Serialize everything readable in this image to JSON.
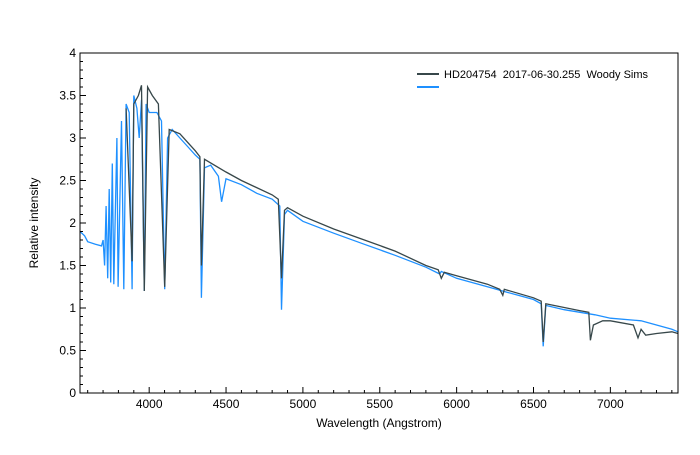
{
  "chart_data": {
    "type": "line",
    "title": "",
    "xlabel": "Wavelength (Angstrom)",
    "ylabel": "Relative intensity",
    "xlim": [
      3550,
      7440
    ],
    "ylim": [
      0,
      4
    ],
    "xticks": [
      4000,
      4500,
      5000,
      5500,
      6000,
      6500,
      7000
    ],
    "yticks": [
      0,
      0.5,
      1,
      1.5,
      2,
      2.5,
      3,
      3.5,
      4
    ],
    "ytick_labels": [
      "0",
      "0.5",
      "1",
      "1.5",
      "2",
      "2.5",
      "3",
      "3.5",
      "4"
    ],
    "legend_position": "top-right",
    "series": [
      {
        "name": "HD204754  2017-06-30.255  Woody Sims",
        "color": "#37474a",
        "x": [
          3850,
          3889,
          3900,
          3930,
          3950,
          3968,
          3990,
          4020,
          4060,
          4101,
          4130,
          4200,
          4300,
          4330,
          4340,
          4360,
          4500,
          4600,
          4800,
          4840,
          4861,
          4880,
          4900,
          5000,
          5200,
          5400,
          5600,
          5800,
          5880,
          5900,
          5920,
          6000,
          6200,
          6280,
          6300,
          6310,
          6500,
          6550,
          6563,
          6580,
          6800,
          6860,
          6870,
          6890,
          6950,
          7000,
          7150,
          7180,
          7200,
          7230,
          7300,
          7400,
          7440
        ],
        "y": [
          3.35,
          1.55,
          3.4,
          3.5,
          3.62,
          1.2,
          3.6,
          3.5,
          3.4,
          1.25,
          3.1,
          3.05,
          2.85,
          2.78,
          1.5,
          2.75,
          2.6,
          2.5,
          2.33,
          2.28,
          1.35,
          2.15,
          2.18,
          2.08,
          1.93,
          1.8,
          1.67,
          1.5,
          1.45,
          1.35,
          1.42,
          1.38,
          1.28,
          1.22,
          1.15,
          1.22,
          1.12,
          1.08,
          0.6,
          1.05,
          0.97,
          0.95,
          0.62,
          0.8,
          0.85,
          0.85,
          0.8,
          0.65,
          0.75,
          0.68,
          0.7,
          0.72,
          0.7
        ]
      },
      {
        "name": "",
        "color": "#1e90ff",
        "x": [
          3550,
          3580,
          3600,
          3650,
          3690,
          3700,
          3710,
          3720,
          3730,
          3740,
          3750,
          3760,
          3770,
          3790,
          3798,
          3820,
          3835,
          3850,
          3870,
          3889,
          3900,
          3920,
          3935,
          3950,
          3968,
          3980,
          4000,
          4050,
          4080,
          4101,
          4120,
          4150,
          4200,
          4250,
          4300,
          4330,
          4340,
          4360,
          4400,
          4450,
          4471,
          4500,
          4600,
          4700,
          4800,
          4850,
          4861,
          4880,
          4900,
          5000,
          5200,
          5400,
          5600,
          5800,
          5890,
          5900,
          6000,
          6200,
          6400,
          6500,
          6550,
          6563,
          6580,
          6700,
          6900,
          7000,
          7200,
          7300,
          7400,
          7440
        ],
        "y": [
          1.9,
          1.85,
          1.78,
          1.75,
          1.73,
          1.8,
          1.5,
          2.2,
          1.35,
          2.4,
          1.3,
          2.7,
          1.28,
          3.0,
          1.25,
          3.2,
          1.22,
          3.4,
          3.3,
          1.22,
          3.5,
          3.35,
          3.0,
          3.45,
          1.2,
          3.4,
          3.3,
          3.3,
          3.2,
          1.22,
          3.0,
          3.1,
          3.0,
          2.9,
          2.8,
          2.75,
          1.12,
          2.65,
          2.68,
          2.55,
          2.25,
          2.52,
          2.45,
          2.35,
          2.28,
          2.2,
          0.98,
          2.1,
          2.15,
          2.02,
          1.88,
          1.75,
          1.62,
          1.48,
          1.4,
          1.43,
          1.35,
          1.25,
          1.15,
          1.1,
          1.05,
          0.55,
          1.03,
          0.98,
          0.92,
          0.88,
          0.85,
          0.8,
          0.75,
          0.72
        ]
      }
    ]
  }
}
